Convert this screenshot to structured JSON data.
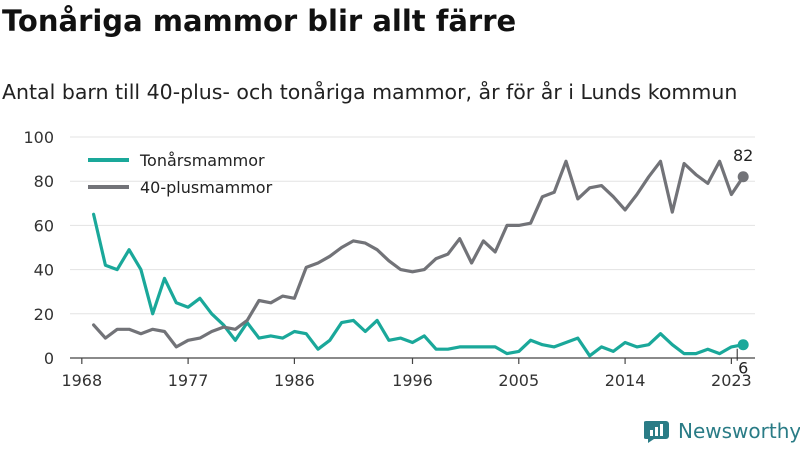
{
  "title": "Tonåriga mammor blir allt färre",
  "subtitle": "Antal barn till 40-plus- och tonåriga mammor, år för år i Lunds kommun",
  "brand": {
    "name": "Newsworthy",
    "logo_icon": "newsworthy-logo-icon"
  },
  "colors": {
    "teal": "#1aa89a",
    "gray": "#727378",
    "grid": "#e3e3e3",
    "axis": "#444444",
    "brand": "#2a7c86"
  },
  "chart_data": {
    "type": "line",
    "x_ticks": [
      1968,
      1977,
      1986,
      1996,
      2005,
      2014,
      2023
    ],
    "y_ticks": [
      0,
      20,
      40,
      60,
      80,
      100
    ],
    "ylim": [
      0,
      100
    ],
    "xlim": [
      1967,
      2025
    ],
    "grid": true,
    "legend_position": "top-left",
    "series": [
      {
        "name": "Tonårsmammor",
        "color": "#1aa89a",
        "end_label": "6",
        "points": [
          [
            1969,
            65
          ],
          [
            1970,
            42
          ],
          [
            1971,
            40
          ],
          [
            1972,
            49
          ],
          [
            1973,
            40
          ],
          [
            1974,
            20
          ],
          [
            1975,
            36
          ],
          [
            1976,
            25
          ],
          [
            1977,
            23
          ],
          [
            1978,
            27
          ],
          [
            1979,
            20
          ],
          [
            1980,
            15
          ],
          [
            1981,
            8
          ],
          [
            1982,
            16
          ],
          [
            1983,
            9
          ],
          [
            1984,
            10
          ],
          [
            1985,
            9
          ],
          [
            1986,
            12
          ],
          [
            1987,
            11
          ],
          [
            1988,
            4
          ],
          [
            1989,
            8
          ],
          [
            1990,
            16
          ],
          [
            1991,
            17
          ],
          [
            1992,
            12
          ],
          [
            1993,
            17
          ],
          [
            1994,
            8
          ],
          [
            1995,
            9
          ],
          [
            1996,
            7
          ],
          [
            1997,
            10
          ],
          [
            1998,
            4
          ],
          [
            1999,
            4
          ],
          [
            2000,
            5
          ],
          [
            2001,
            5
          ],
          [
            2002,
            5
          ],
          [
            2003,
            5
          ],
          [
            2004,
            2
          ],
          [
            2005,
            3
          ],
          [
            2006,
            8
          ],
          [
            2007,
            6
          ],
          [
            2008,
            5
          ],
          [
            2009,
            7
          ],
          [
            2010,
            9
          ],
          [
            2011,
            1
          ],
          [
            2012,
            5
          ],
          [
            2013,
            3
          ],
          [
            2014,
            7
          ],
          [
            2015,
            5
          ],
          [
            2016,
            6
          ],
          [
            2017,
            11
          ],
          [
            2018,
            6
          ],
          [
            2019,
            2
          ],
          [
            2020,
            2
          ],
          [
            2021,
            4
          ],
          [
            2022,
            2
          ],
          [
            2023,
            5
          ],
          [
            2024,
            6
          ]
        ]
      },
      {
        "name": "40-plusmammor",
        "color": "#727378",
        "end_label": "82",
        "points": [
          [
            1969,
            15
          ],
          [
            1970,
            9
          ],
          [
            1971,
            13
          ],
          [
            1972,
            13
          ],
          [
            1973,
            11
          ],
          [
            1974,
            13
          ],
          [
            1975,
            12
          ],
          [
            1976,
            5
          ],
          [
            1977,
            8
          ],
          [
            1978,
            9
          ],
          [
            1979,
            12
          ],
          [
            1980,
            14
          ],
          [
            1981,
            13
          ],
          [
            1982,
            17
          ],
          [
            1983,
            26
          ],
          [
            1984,
            25
          ],
          [
            1985,
            28
          ],
          [
            1986,
            27
          ],
          [
            1987,
            41
          ],
          [
            1988,
            43
          ],
          [
            1989,
            46
          ],
          [
            1990,
            50
          ],
          [
            1991,
            53
          ],
          [
            1992,
            52
          ],
          [
            1993,
            49
          ],
          [
            1994,
            44
          ],
          [
            1995,
            40
          ],
          [
            1996,
            39
          ],
          [
            1997,
            40
          ],
          [
            1998,
            45
          ],
          [
            1999,
            47
          ],
          [
            2000,
            54
          ],
          [
            2001,
            43
          ],
          [
            2002,
            53
          ],
          [
            2003,
            48
          ],
          [
            2004,
            60
          ],
          [
            2005,
            60
          ],
          [
            2006,
            61
          ],
          [
            2007,
            73
          ],
          [
            2008,
            75
          ],
          [
            2009,
            89
          ],
          [
            2010,
            72
          ],
          [
            2011,
            77
          ],
          [
            2012,
            78
          ],
          [
            2013,
            73
          ],
          [
            2014,
            67
          ],
          [
            2015,
            74
          ],
          [
            2016,
            82
          ],
          [
            2017,
            89
          ],
          [
            2018,
            66
          ],
          [
            2019,
            88
          ],
          [
            2020,
            83
          ],
          [
            2021,
            79
          ],
          [
            2022,
            89
          ],
          [
            2023,
            74
          ],
          [
            2024,
            82
          ]
        ]
      }
    ]
  }
}
